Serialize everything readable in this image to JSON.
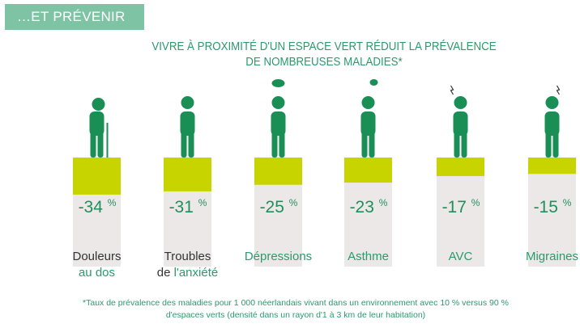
{
  "header": {
    "tag": "…ET PRÉVENIR"
  },
  "chart_data": {
    "type": "bar",
    "title": "VIVRE À PROXIMITÉ D'UN ESPACE VERT RÉDUIT LA PRÉVALENCE DE NOMBREUSES MALADIES*",
    "title_line1": "VIVRE À PROXIMITÉ D'UN ESPACE VERT RÉDUIT LA PRÉVALENCE",
    "title_line2": "DE NOMBREUSES MALADIES*",
    "categories": [
      "Douleurs au dos",
      "Troubles de l'anxiété",
      "Dépressions",
      "Asthme",
      "AVC",
      "Migraines"
    ],
    "label_parts": [
      {
        "dark": "Douleurs",
        "green": "au dos"
      },
      {
        "dark": "Troubles",
        "dark2": "de ",
        "green": "l'anxiété"
      },
      {
        "green": "Dépressions"
      },
      {
        "green": "Asthme"
      },
      {
        "green": "AVC"
      },
      {
        "green": "Migraines"
      }
    ],
    "values": [
      -34,
      -31,
      -25,
      -23,
      -17,
      -15
    ],
    "value_labels": [
      "-34",
      "-31",
      "-25",
      "-23",
      "-17",
      "-15"
    ],
    "unit": "%",
    "ylim": [
      -100,
      0
    ],
    "colors": {
      "bar": "#c8d400",
      "track": "#ece8e8",
      "figure": "#1a8f55",
      "text": "#2b9a6c"
    }
  },
  "footnote": {
    "line1": "*Taux de prévalence des maladies pour 1 000 néerlandais vivant dans un environnement avec 10 % versus 90 %",
    "line2": "d'espaces verts (densité dans un rayon d'1 à 3 km de leur habitation)"
  }
}
